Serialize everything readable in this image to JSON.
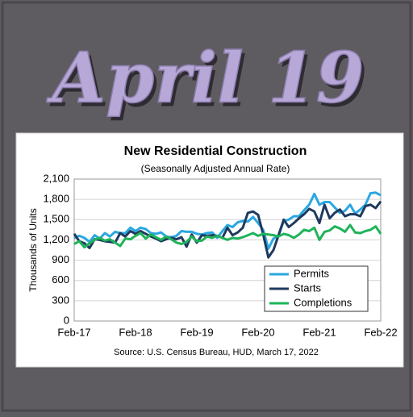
{
  "banner": "April 19",
  "chart_data": {
    "type": "line",
    "title": "New Residential Construction",
    "subtitle": "(Seasonally Adjusted Annual Rate)",
    "y_label": "Thousands of Units",
    "source": "Source:  U.S. Census Bureau, HUD, March 17, 2022",
    "categories": [
      "Feb-17",
      null,
      null,
      null,
      null,
      null,
      null,
      null,
      null,
      null,
      null,
      null,
      "Feb-18",
      null,
      null,
      null,
      null,
      null,
      null,
      null,
      null,
      null,
      null,
      null,
      "Feb-19",
      null,
      null,
      null,
      null,
      null,
      null,
      null,
      null,
      null,
      null,
      null,
      "Feb-20",
      null,
      null,
      null,
      null,
      null,
      null,
      null,
      null,
      null,
      null,
      null,
      "Feb-21",
      null,
      null,
      null,
      null,
      null,
      null,
      null,
      null,
      null,
      null,
      null,
      "Feb-22"
    ],
    "ylim": [
      0,
      2100
    ],
    "yticks": [
      0,
      300,
      600,
      900,
      {
        "value": 1200,
        "label": "1,200"
      },
      {
        "value": 1500,
        "label": "1,500"
      },
      {
        "value": 1800,
        "label": "1,800"
      },
      {
        "value": 2100,
        "label": "2,100"
      }
    ],
    "grid": true,
    "legend": "lower right",
    "series": [
      {
        "name": "Permits",
        "color": "#2aa7e0",
        "values": [
          1230,
          1260,
          1230,
          1170,
          1270,
          1220,
          1300,
          1250,
          1320,
          1300,
          1300,
          1380,
          1330,
          1380,
          1360,
          1300,
          1290,
          1310,
          1250,
          1240,
          1260,
          1330,
          1320,
          1320,
          1290,
          1280,
          1300,
          1310,
          1230,
          1330,
          1420,
          1390,
          1460,
          1480,
          1470,
          1540,
          1450,
          1350,
          1070,
          1220,
          1260,
          1480,
          1500,
          1550,
          1550,
          1640,
          1720,
          1880,
          1720,
          1760,
          1760,
          1680,
          1600,
          1630,
          1720,
          1590,
          1650,
          1720,
          1890,
          1900,
          1860
        ]
      },
      {
        "name": "Starts",
        "color": "#1f3a5f",
        "values": [
          1290,
          1180,
          1150,
          1080,
          1210,
          1200,
          1180,
          1170,
          1160,
          1300,
          1250,
          1330,
          1290,
          1330,
          1290,
          1250,
          1220,
          1180,
          1210,
          1230,
          1210,
          1240,
          1100,
          1280,
          1160,
          1270,
          1260,
          1270,
          1260,
          1230,
          1380,
          1270,
          1310,
          1380,
          1600,
          1620,
          1570,
          1280,
          940,
          1050,
          1270,
          1500,
          1390,
          1450,
          1520,
          1580,
          1660,
          1620,
          1450,
          1720,
          1520,
          1600,
          1650,
          1550,
          1580,
          1580,
          1550,
          1700,
          1720,
          1670,
          1770
        ]
      },
      {
        "name": "Completions",
        "color": "#1fb35a",
        "values": [
          1140,
          1180,
          1090,
          1150,
          1200,
          1230,
          1190,
          1210,
          1160,
          1110,
          1220,
          1210,
          1260,
          1300,
          1220,
          1280,
          1240,
          1200,
          1250,
          1210,
          1160,
          1140,
          1170,
          1250,
          1180,
          1190,
          1250,
          1230,
          1260,
          1230,
          1200,
          1230,
          1220,
          1240,
          1270,
          1300,
          1260,
          1290,
          1280,
          1270,
          1250,
          1290,
          1270,
          1230,
          1280,
          1350,
          1330,
          1380,
          1200,
          1320,
          1340,
          1400,
          1370,
          1320,
          1420,
          1310,
          1300,
          1330,
          1350,
          1400,
          1290
        ]
      }
    ]
  }
}
